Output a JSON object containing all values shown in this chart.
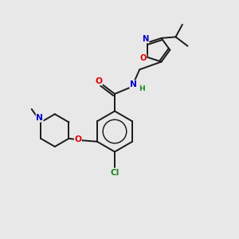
{
  "background_color": "#e8e8e8",
  "bond_color": "#1a1a1a",
  "atom_colors": {
    "O": "#e00000",
    "N": "#0000cc",
    "Cl": "#228822",
    "H": "#228822",
    "C": "#1a1a1a"
  },
  "figsize": [
    3.0,
    3.0
  ],
  "dpi": 100,
  "lw": 1.4,
  "fs": 7.2
}
